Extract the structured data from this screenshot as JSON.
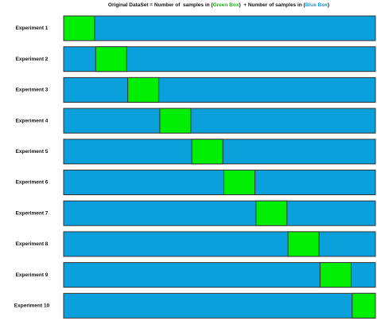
{
  "header": {
    "title": {
      "prefix": "Original DataSet = Number of  samples in (",
      "green": "Green Box",
      "middle": ")  + Number of samples in (",
      "blue": "Blue Box",
      "suffix": ")"
    }
  },
  "experiments": [
    "Experiment 1",
    "Experiment 2",
    "Experiment 3",
    "Experiment 4",
    "Experiment 5",
    "Experiment 6",
    "Experiment 7",
    "Experiment 8",
    "Experiment 9",
    "Experiment 10"
  ]
}
